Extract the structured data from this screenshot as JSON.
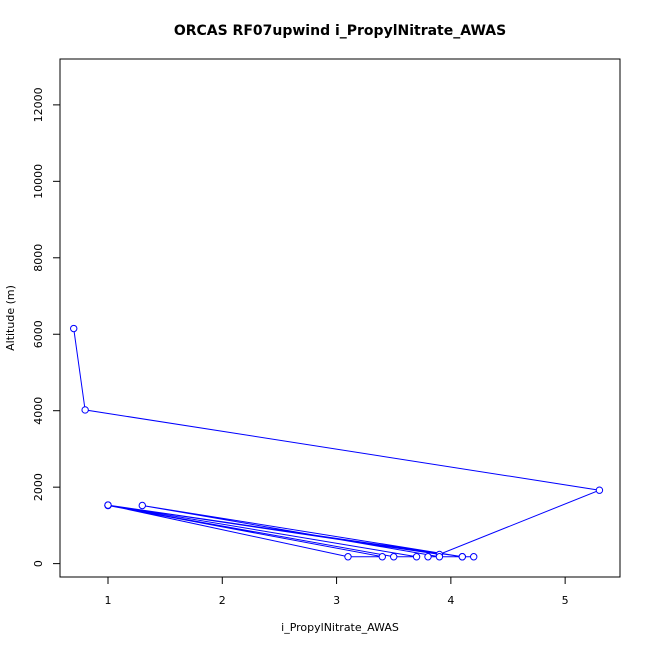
{
  "chart_data": {
    "type": "line",
    "title": "ORCAS RF07upwind i_PropylNitrate_AWAS",
    "xlabel": "i_PropylNitrate_AWAS",
    "ylabel": "Altitude (m)",
    "xlim": [
      0.58,
      5.48
    ],
    "ylim": [
      -350,
      13200
    ],
    "x_ticks": [
      1,
      2,
      3,
      4,
      5
    ],
    "y_ticks": [
      0,
      2000,
      4000,
      6000,
      8000,
      10000,
      12000
    ],
    "grid": false,
    "line_color": "#0000ff",
    "marker": "open-circle",
    "series": [
      {
        "points": [
          {
            "x": 0.7,
            "y": 6150
          },
          {
            "x": 0.8,
            "y": 4020
          },
          {
            "x": 5.3,
            "y": 1920
          },
          {
            "x": 3.9,
            "y": 240
          },
          {
            "x": 1.0,
            "y": 1530
          },
          {
            "x": 3.1,
            "y": 180
          },
          {
            "x": 3.4,
            "y": 180
          },
          {
            "x": 1.0,
            "y": 1520
          },
          {
            "x": 3.5,
            "y": 180
          },
          {
            "x": 3.7,
            "y": 180
          },
          {
            "x": 1.0,
            "y": 1530
          },
          {
            "x": 4.1,
            "y": 180
          },
          {
            "x": 3.8,
            "y": 180
          },
          {
            "x": 4.2,
            "y": 180
          },
          {
            "x": 3.9,
            "y": 180
          },
          {
            "x": 1.3,
            "y": 1520
          },
          {
            "x": 4.1,
            "y": 180
          }
        ]
      }
    ]
  }
}
